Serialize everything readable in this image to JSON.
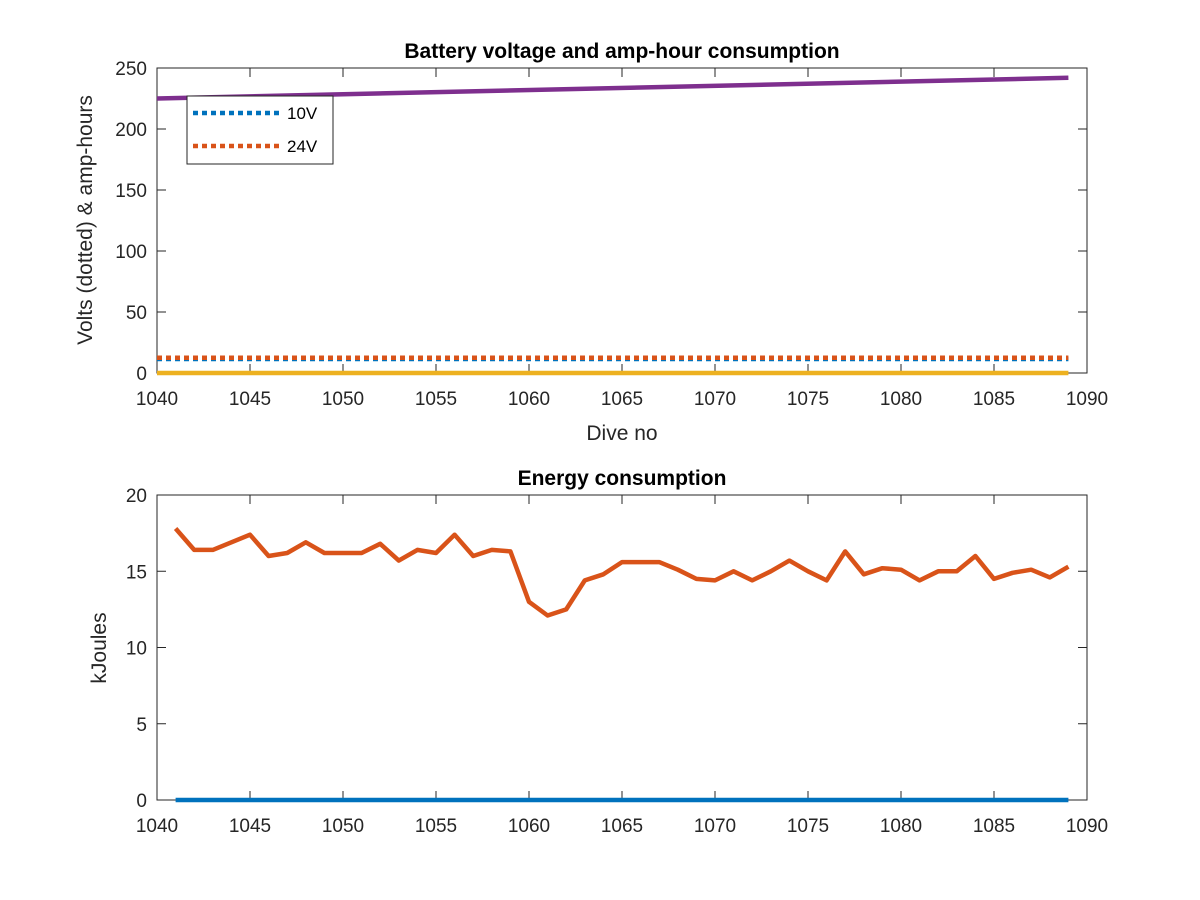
{
  "chart_data": [
    {
      "type": "line",
      "title": "Battery voltage and amp-hour consumption",
      "xlabel": "Dive no",
      "ylabel": "Volts (dotted) & amp-hours",
      "xlim": [
        1040,
        1090
      ],
      "ylim": [
        0,
        250
      ],
      "xticks": [
        1040,
        1045,
        1050,
        1055,
        1060,
        1065,
        1070,
        1075,
        1080,
        1085,
        1090
      ],
      "yticks": [
        0,
        50,
        100,
        150,
        200,
        250
      ],
      "grid": false,
      "legend": {
        "placement": "top-left",
        "entries": [
          "10V",
          "24V"
        ]
      },
      "series": [
        {
          "name": "10V",
          "style": "dotted",
          "color": "#0072BD",
          "x": [
            1040,
            1089
          ],
          "y": [
            11.5,
            11.5
          ]
        },
        {
          "name": "24V",
          "style": "dotted",
          "color": "#D95319",
          "x": [
            1040,
            1089
          ],
          "y": [
            12.5,
            12.5
          ]
        },
        {
          "style": "solid",
          "color": "#EDB120",
          "x": [
            1040,
            1089
          ],
          "y": [
            0,
            0
          ]
        },
        {
          "style": "solid",
          "color": "#7E2F8E",
          "x": [
            1040,
            1089
          ],
          "y": [
            225,
            242
          ]
        }
      ]
    },
    {
      "type": "line",
      "title": "Energy consumption",
      "xlabel": "",
      "ylabel": "kJoules",
      "xlim": [
        1040,
        1090
      ],
      "ylim": [
        0,
        20
      ],
      "xticks": [
        1040,
        1045,
        1050,
        1055,
        1060,
        1065,
        1070,
        1075,
        1080,
        1085,
        1090
      ],
      "yticks": [
        0,
        5,
        10,
        15,
        20
      ],
      "grid": false,
      "series": [
        {
          "style": "solid",
          "color": "#D95319",
          "x": [
            1041,
            1042,
            1043,
            1044,
            1045,
            1046,
            1047,
            1048,
            1049,
            1050,
            1051,
            1052,
            1053,
            1054,
            1055,
            1056,
            1057,
            1058,
            1059,
            1060,
            1061,
            1062,
            1063,
            1064,
            1065,
            1066,
            1067,
            1068,
            1069,
            1070,
            1071,
            1072,
            1073,
            1074,
            1075,
            1076,
            1077,
            1078,
            1079,
            1080,
            1081,
            1082,
            1083,
            1084,
            1085,
            1086,
            1087,
            1088,
            1089
          ],
          "y": [
            17.8,
            16.4,
            16.4,
            16.9,
            17.4,
            16.0,
            16.2,
            16.9,
            16.2,
            16.2,
            16.2,
            16.8,
            15.7,
            16.4,
            16.2,
            17.4,
            16.0,
            16.4,
            16.3,
            13.0,
            12.1,
            12.5,
            14.4,
            14.8,
            15.6,
            15.6,
            15.6,
            15.1,
            14.5,
            14.4,
            15.0,
            14.4,
            15.0,
            15.7,
            15.0,
            14.4,
            16.3,
            14.8,
            15.2,
            15.1,
            14.4,
            15.0,
            15.0,
            16.0,
            14.5,
            14.9,
            15.1,
            14.6,
            15.3
          ]
        },
        {
          "style": "solid",
          "color": "#0072BD",
          "x": [
            1041,
            1089
          ],
          "y": [
            0,
            0
          ]
        }
      ]
    }
  ]
}
